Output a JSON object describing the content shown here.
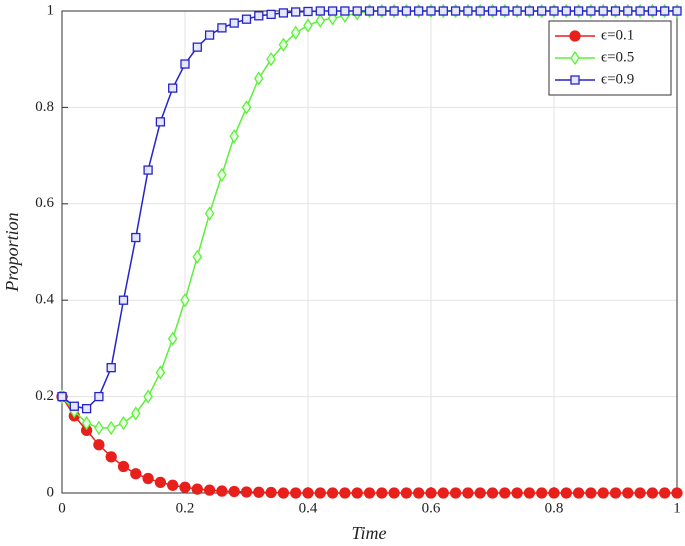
{
  "chart_data": {
    "type": "line",
    "xlabel": "Time",
    "ylabel": "Proportion",
    "x": [
      0,
      0.02,
      0.04,
      0.06,
      0.08,
      0.1,
      0.12,
      0.14,
      0.16,
      0.18,
      0.2,
      0.22,
      0.24,
      0.26,
      0.28,
      0.3,
      0.32,
      0.34,
      0.36,
      0.38,
      0.4,
      0.42,
      0.44,
      0.46,
      0.48,
      0.5,
      0.52,
      0.54,
      0.56,
      0.58,
      0.6,
      0.62,
      0.64,
      0.66,
      0.68,
      0.7,
      0.72,
      0.74,
      0.76,
      0.78,
      0.8,
      0.82,
      0.84,
      0.86,
      0.88,
      0.9,
      0.92,
      0.94,
      0.96,
      0.98,
      1
    ],
    "series": [
      {
        "name": "ϵ=0.1",
        "color": "#e8201c",
        "marker": "circle",
        "values": [
          0.2,
          0.16,
          0.13,
          0.1,
          0.075,
          0.055,
          0.04,
          0.03,
          0.022,
          0.016,
          0.012,
          0.008,
          0.006,
          0.004,
          0.003,
          0.002,
          0.0015,
          0.001,
          0,
          0,
          0,
          0,
          0,
          0,
          0,
          0,
          0,
          0,
          0,
          0,
          0,
          0,
          0,
          0,
          0,
          0,
          0,
          0,
          0,
          0,
          0,
          0,
          0,
          0,
          0,
          0,
          0,
          0,
          0,
          0,
          0
        ]
      },
      {
        "name": "ϵ=0.5",
        "color": "#5cf03a",
        "marker": "diamond",
        "values": [
          0.2,
          0.17,
          0.145,
          0.135,
          0.135,
          0.145,
          0.165,
          0.2,
          0.25,
          0.32,
          0.4,
          0.49,
          0.58,
          0.66,
          0.74,
          0.8,
          0.86,
          0.9,
          0.93,
          0.955,
          0.97,
          0.98,
          0.985,
          0.99,
          0.995,
          1,
          1,
          1,
          1,
          1,
          1,
          1,
          1,
          1,
          1,
          1,
          1,
          1,
          1,
          1,
          1,
          1,
          1,
          1,
          1,
          1,
          1,
          1,
          1,
          1,
          1
        ]
      },
      {
        "name": "ϵ=0.9",
        "color": "#2424c8",
        "marker": "square",
        "values": [
          0.2,
          0.18,
          0.175,
          0.2,
          0.26,
          0.4,
          0.53,
          0.67,
          0.77,
          0.84,
          0.89,
          0.925,
          0.95,
          0.965,
          0.975,
          0.983,
          0.99,
          0.993,
          0.996,
          0.998,
          0.999,
          1,
          1,
          1,
          1,
          1,
          1,
          1,
          1,
          1,
          1,
          1,
          1,
          1,
          1,
          1,
          1,
          1,
          1,
          1,
          1,
          1,
          1,
          1,
          1,
          1,
          1,
          1,
          1,
          1,
          1
        ]
      }
    ],
    "xlim": [
      0,
      1
    ],
    "xticks": [
      0,
      0.2,
      0.4,
      0.6,
      0.8,
      1
    ],
    "ylim": [
      0,
      1
    ],
    "yticks": [
      0,
      0.2,
      0.4,
      0.6,
      0.8,
      1
    ],
    "grid": true,
    "legend": "top-right"
  }
}
